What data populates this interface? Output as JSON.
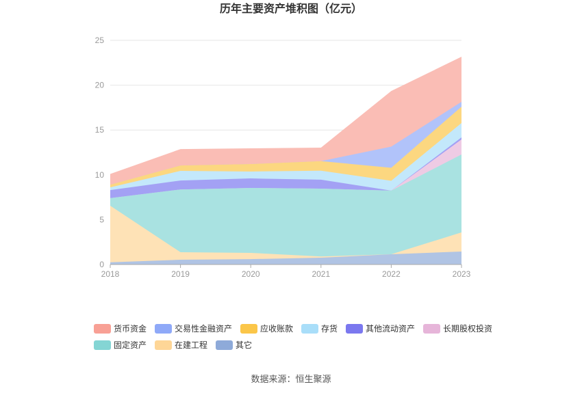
{
  "chart_data": {
    "type": "area",
    "stacked": true,
    "title": "历年主要资产堆积图（亿元）",
    "source": "数据来源：恒生聚源",
    "categories": [
      "2018",
      "2019",
      "2020",
      "2021",
      "2022",
      "2023"
    ],
    "ylim": [
      0,
      25
    ],
    "yticks": [
      0,
      5,
      10,
      15,
      20,
      25
    ],
    "grid": true,
    "legend": "bottom",
    "series": [
      {
        "name": "货币资金",
        "color": "#f8a095",
        "values": [
          1.2,
          1.83,
          1.76,
          1.5,
          6.2,
          5.03
        ]
      },
      {
        "name": "交易性金融资产",
        "color": "#8fa9f8",
        "values": [
          0,
          0,
          0,
          0,
          2.36,
          0.54
        ]
      },
      {
        "name": "应收账款",
        "color": "#fbc649",
        "values": [
          0.3,
          0.6,
          0.83,
          1.07,
          1.45,
          1.82
        ]
      },
      {
        "name": "存货",
        "color": "#a9def9",
        "values": [
          0.3,
          1.07,
          0.77,
          1.0,
          1.1,
          1.6
        ]
      },
      {
        "name": "其他流动资产",
        "color": "#7b78ef",
        "values": [
          0.9,
          1.0,
          1.06,
          1.0,
          0,
          0.23
        ]
      },
      {
        "name": "长期股权投资",
        "color": "#e6b5d9",
        "values": [
          0,
          0,
          0,
          0,
          0,
          1.68
        ]
      },
      {
        "name": "固定资产",
        "color": "#84d5d4",
        "values": [
          0.85,
          7.0,
          7.24,
          7.56,
          7.1,
          8.69
        ]
      },
      {
        "name": "在建工程",
        "color": "#fed697",
        "values": [
          6.3,
          0.84,
          0.7,
          0.14,
          0,
          2.13
        ]
      },
      {
        "name": "其它",
        "color": "#8eaad9",
        "values": [
          0.25,
          0.53,
          0.6,
          0.76,
          1.14,
          1.45
        ]
      }
    ]
  }
}
